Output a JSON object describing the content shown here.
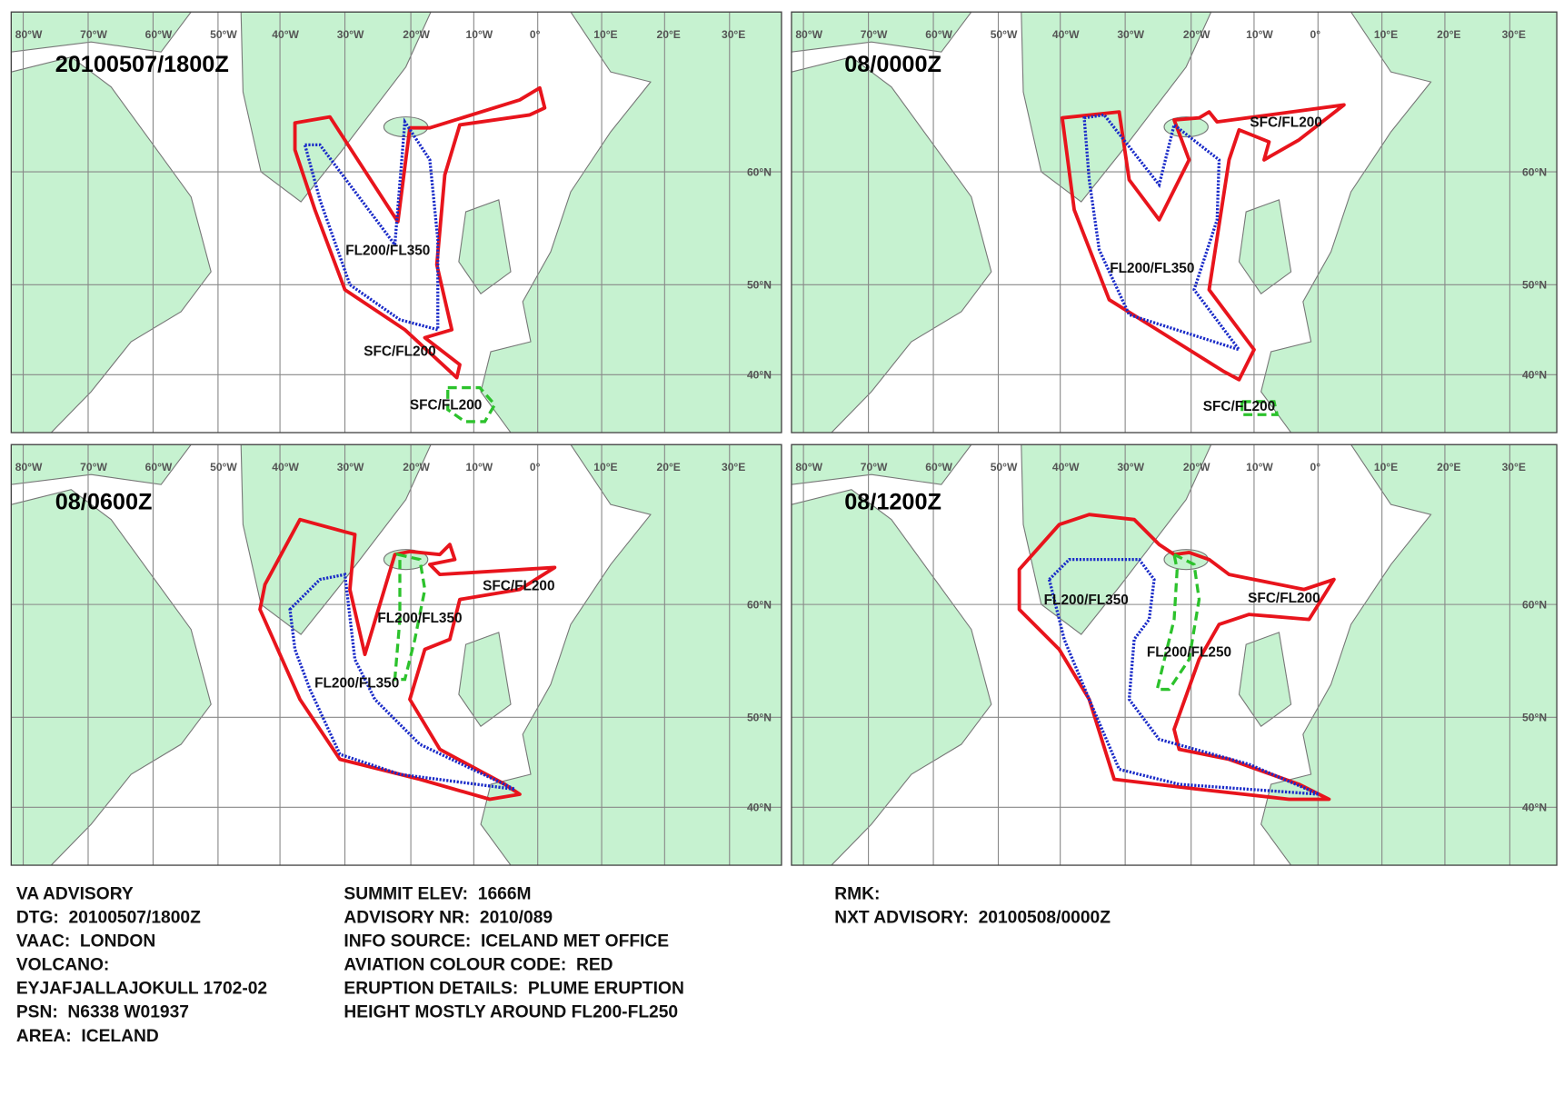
{
  "panels": [
    {
      "time": "20100507/1800Z",
      "labels": [
        "FL200/FL350",
        "SFC/FL200",
        "SFC/FL200"
      ]
    },
    {
      "time": "08/0000Z",
      "labels": [
        "SFC/FL200",
        "FL200/FL350",
        "SFC/FL200"
      ]
    },
    {
      "time": "08/0600Z",
      "labels": [
        "SFC/FL200",
        "FL200/FL350",
        "FL200/FL350"
      ]
    },
    {
      "time": "08/1200Z",
      "labels": [
        "FL200/FL350",
        "SFC/FL200",
        "FL200/FL250"
      ]
    }
  ],
  "grid": {
    "lon_labels": [
      "80°W",
      "70°W",
      "60°W",
      "50°W",
      "40°W",
      "30°W",
      "20°W",
      "10°W",
      "0°",
      "10°E",
      "20°E",
      "30°E"
    ],
    "lat_labels": [
      "60°N",
      "50°N",
      "40°N"
    ]
  },
  "advisory": {
    "columns": [
      [
        "VA ADVISORY",
        "DTG:  20100507/1800Z",
        "VAAC:  LONDON",
        "VOLCANO:",
        "EYJAFJALLAJOKULL 1702-02",
        "PSN:  N6338 W01937",
        "AREA:  ICELAND"
      ],
      [
        "SUMMIT ELEV:  1666M",
        "ADVISORY NR:  2010/089",
        "INFO SOURCE:  ICELAND MET OFFICE",
        "AVIATION COLOUR CODE:  RED",
        "ERUPTION DETAILS:  PLUME ERUPTION",
        "HEIGHT MOSTLY AROUND FL200-FL250"
      ],
      [
        "RMK:",
        "NXT ADVISORY:  20100508/0000Z"
      ]
    ]
  }
}
